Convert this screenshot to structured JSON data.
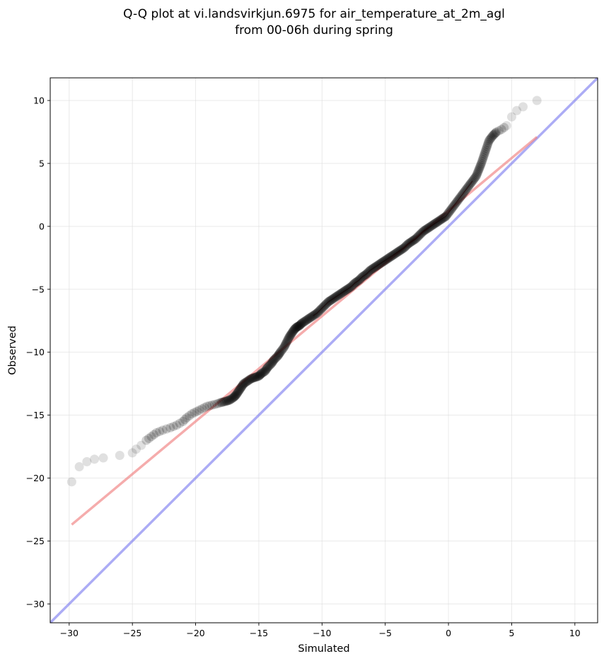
{
  "chart_data": {
    "type": "scatter",
    "title_lines": [
      "Q-Q plot at vi.landsvirkjun.6975 for air_temperature_at_2m_agl",
      "from 00-06h during spring"
    ],
    "xlabel": "Simulated",
    "ylabel": "Observed",
    "xlim": [
      -31.5,
      11.8
    ],
    "ylim": [
      -31.5,
      11.8
    ],
    "xticks": [
      -30,
      -25,
      -20,
      -15,
      -10,
      -5,
      0,
      5,
      10
    ],
    "yticks": [
      -30,
      -25,
      -20,
      -15,
      -10,
      -5,
      0,
      5,
      10
    ],
    "xtick_labels": [
      "−30",
      "−25",
      "−20",
      "−15",
      "−10",
      "−5",
      "0",
      "5",
      "10"
    ],
    "ytick_labels": [
      "−30",
      "−25",
      "−20",
      "−15",
      "−10",
      "−5",
      "0",
      "5",
      "10"
    ],
    "grid": true,
    "colors": {
      "points": "#000000",
      "fit_line": "#f08080",
      "identity_line": "#8080f0"
    },
    "fit_line": {
      "x": [
        -29.8,
        7.0
      ],
      "y": [
        -23.7,
        7.1
      ]
    },
    "identity_line": {
      "x": [
        -31.5,
        11.8
      ],
      "y": [
        -31.5,
        11.8
      ]
    },
    "series": [
      {
        "quantiles_x": [
          -29.8,
          -29.2,
          -28.6,
          -28.0,
          -27.3,
          -26.0,
          -25.0,
          -24.7,
          -24.3,
          -23.9,
          -23.5,
          -23.1,
          -22.6,
          -22.0,
          -21.5,
          -21.0,
          -20.7,
          -20.3,
          -19.9,
          -19.5,
          -19.1,
          -18.7,
          -18.3,
          -18.0,
          -17.6,
          -17.3,
          -17.0,
          -16.8,
          -16.6,
          -16.4,
          -16.2,
          -15.9,
          -15.6,
          -15.3,
          -15.0,
          -14.8,
          -14.5,
          -14.3,
          -14.0,
          -13.8,
          -13.5,
          -13.3,
          -13.0,
          -12.8,
          -12.6,
          -12.4,
          -12.2,
          -12.0,
          -11.8,
          -11.6,
          -11.3,
          -11.0,
          -10.7,
          -10.4,
          -10.1,
          -9.8,
          -9.5,
          -9.2,
          -8.9,
          -8.6,
          -8.3,
          -8.0,
          -7.7,
          -7.4,
          -7.1,
          -6.8,
          -6.5,
          -6.2,
          -5.9,
          -5.6,
          -5.3,
          -5.0,
          -4.7,
          -4.4,
          -4.1,
          -3.8,
          -3.5,
          -3.2,
          -2.9,
          -2.6,
          -2.3,
          -2.0,
          -1.7,
          -1.4,
          -1.1,
          -0.8,
          -0.5,
          -0.2,
          0.1,
          0.4,
          0.7,
          1.0,
          1.3,
          1.6,
          1.9,
          2.2,
          2.4,
          2.6,
          2.8,
          3.0,
          3.2,
          3.5,
          3.8,
          4.2,
          4.6,
          5.0,
          5.4,
          5.9,
          7.0
        ],
        "quantiles_y": [
          -20.3,
          -19.1,
          -18.7,
          -18.5,
          -18.4,
          -18.2,
          -18.0,
          -17.7,
          -17.4,
          -17.0,
          -16.7,
          -16.4,
          -16.2,
          -16.0,
          -15.8,
          -15.5,
          -15.2,
          -14.9,
          -14.7,
          -14.5,
          -14.3,
          -14.2,
          -14.1,
          -14.0,
          -13.9,
          -13.8,
          -13.6,
          -13.4,
          -13.1,
          -12.8,
          -12.5,
          -12.3,
          -12.1,
          -12.0,
          -11.9,
          -11.7,
          -11.5,
          -11.2,
          -10.9,
          -10.6,
          -10.3,
          -10.0,
          -9.6,
          -9.2,
          -8.8,
          -8.5,
          -8.2,
          -8.0,
          -7.9,
          -7.7,
          -7.5,
          -7.3,
          -7.1,
          -6.9,
          -6.6,
          -6.3,
          -6.0,
          -5.8,
          -5.6,
          -5.4,
          -5.2,
          -5.0,
          -4.8,
          -4.5,
          -4.3,
          -4.0,
          -3.8,
          -3.5,
          -3.3,
          -3.1,
          -2.9,
          -2.7,
          -2.5,
          -2.3,
          -2.1,
          -1.9,
          -1.7,
          -1.4,
          -1.2,
          -1.0,
          -0.7,
          -0.4,
          -0.2,
          0.0,
          0.2,
          0.4,
          0.6,
          0.8,
          1.2,
          1.6,
          2.0,
          2.4,
          2.8,
          3.2,
          3.6,
          4.0,
          4.5,
          5.0,
          5.6,
          6.2,
          6.8,
          7.2,
          7.5,
          7.7,
          8.0,
          8.7,
          9.2,
          9.5,
          10.0
        ]
      }
    ]
  }
}
